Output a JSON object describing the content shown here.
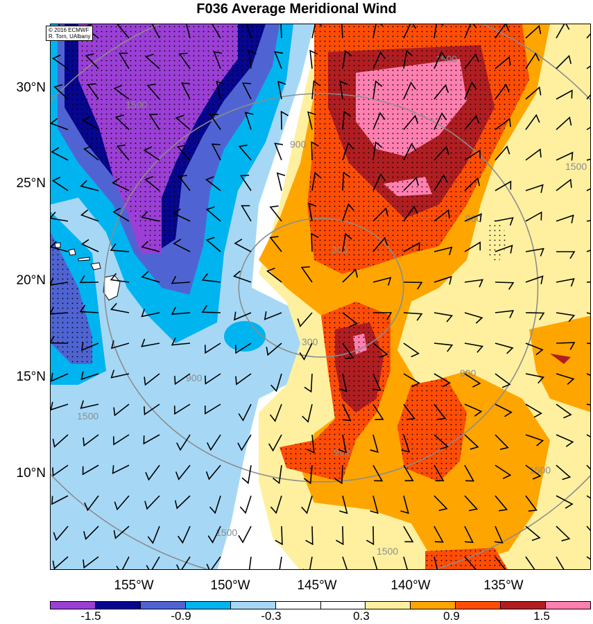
{
  "title": "F036 Average Meridional Wind",
  "credit": {
    "line1": "© 2016 ECMWF",
    "line2": "R. Torn, UAlbany"
  },
  "lat_labels": [
    "30°N",
    "25°N",
    "20°N",
    "15°N",
    "10°N"
  ],
  "lon_labels": [
    "155°W",
    "150°W",
    "145°W",
    "140°W",
    "135°W"
  ],
  "colorbar": {
    "colors": [
      "#9b3fd6",
      "#06068f",
      "#4f64d2",
      "#00b4f0",
      "#a6d8f6",
      "#ffffff",
      "#ffffff",
      "#fff0a0",
      "#ffa500",
      "#ff4d05",
      "#b01e22",
      "#ff80b0"
    ],
    "labels": [
      "-1.5",
      "-0.9",
      "-0.3",
      "0.3",
      "0.9",
      "1.5"
    ]
  },
  "contour_labels": [
    "300",
    "900",
    "1500"
  ],
  "field_colors": {
    "purple": "#9b3fd6",
    "navy": "#06068f",
    "blue": "#4f64d2",
    "cyan": "#00b4f0",
    "lightblue": "#a6d8f6",
    "yellow": "#fff0a0",
    "orange": "#ffa500",
    "redorange": "#ff4d05",
    "darkred": "#b01e22",
    "pink": "#ff80b0",
    "contour": "#8c8c8c",
    "land": "#ffffff"
  }
}
